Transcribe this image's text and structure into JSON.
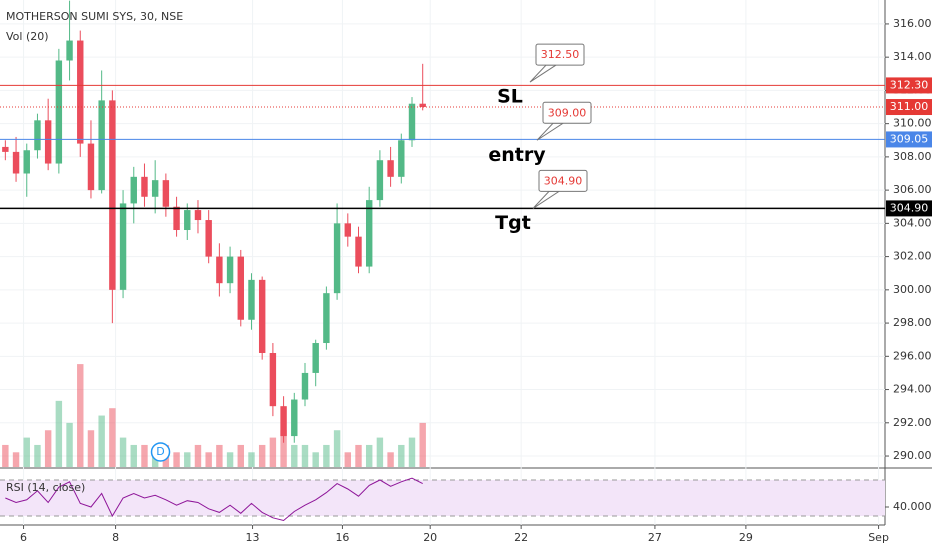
{
  "chart_data": {
    "type": "candlestick",
    "title": "MOTHERSON SUMI SYS, 30, NSE",
    "volume_label": "Vol (20)",
    "rsi_label": "RSI (14, close)",
    "event_marker": {
      "label": "D",
      "x": 14.5
    },
    "open": [
      308.6,
      308.3,
      307.0,
      308.4,
      310.2,
      307.6,
      313.8,
      315.0,
      308.8,
      306.0,
      311.4,
      300.0,
      305.2,
      306.8,
      305.6,
      306.6,
      305.0,
      303.6,
      304.8,
      304.2,
      302.0,
      300.4,
      302.0,
      298.2,
      300.6,
      296.2,
      293.0,
      291.2,
      293.4,
      295.0,
      296.8,
      299.8,
      304.0,
      303.2,
      301.4,
      305.4,
      307.8,
      306.8,
      309.0,
      311.2
    ],
    "high": [
      309.0,
      309.2,
      308.8,
      310.6,
      311.5,
      314.5,
      317.4,
      315.6,
      310.2,
      313.2,
      312.0,
      306.0,
      307.4,
      307.6,
      307.8,
      307.0,
      305.6,
      305.2,
      305.4,
      304.8,
      302.8,
      302.6,
      302.4,
      301.0,
      300.8,
      296.8,
      293.6,
      293.8,
      295.6,
      297.0,
      300.2,
      305.2,
      304.6,
      303.8,
      306.2,
      308.4,
      308.6,
      309.4,
      311.6,
      313.6
    ],
    "low": [
      307.8,
      306.5,
      305.6,
      307.9,
      307.2,
      307.0,
      312.6,
      308.0,
      305.5,
      305.8,
      298.0,
      299.5,
      304.0,
      305.0,
      304.6,
      304.4,
      303.2,
      303.0,
      303.4,
      301.6,
      299.6,
      299.8,
      297.8,
      297.6,
      295.8,
      292.4,
      290.8,
      290.8,
      293.0,
      294.2,
      296.4,
      299.4,
      302.6,
      301.0,
      301.0,
      305.0,
      306.2,
      306.4,
      308.6,
      310.8
    ],
    "close": [
      308.3,
      307.0,
      308.4,
      310.2,
      307.6,
      313.8,
      315.0,
      308.8,
      306.0,
      311.4,
      300.0,
      305.2,
      306.8,
      305.6,
      306.6,
      305.0,
      303.6,
      304.8,
      304.2,
      302.0,
      300.4,
      302.0,
      298.2,
      300.6,
      296.2,
      293.0,
      291.2,
      293.4,
      295.0,
      296.8,
      299.8,
      304.0,
      303.2,
      301.4,
      305.4,
      307.8,
      306.8,
      309.0,
      311.2,
      311.0
    ],
    "volume": [
      3,
      2,
      4,
      3,
      5,
      9,
      6,
      14,
      5,
      7,
      8,
      4,
      3,
      3,
      2,
      3,
      2,
      2,
      3,
      2,
      3,
      2,
      3,
      2,
      3,
      4,
      5,
      3,
      3,
      2,
      3,
      5,
      2,
      3,
      3,
      4,
      2,
      3,
      4,
      6
    ],
    "rsi": [
      50,
      45,
      48,
      58,
      45,
      62,
      68,
      44,
      40,
      55,
      30,
      50,
      55,
      50,
      53,
      48,
      42,
      47,
      45,
      38,
      34,
      42,
      33,
      44,
      34,
      28,
      25,
      35,
      42,
      48,
      56,
      66,
      60,
      52,
      64,
      70,
      63,
      68,
      72,
      66
    ],
    "up_color": "#53b987",
    "down_color": "#eb4d5c",
    "rsi_color": "#8e1599",
    "xlim": [
      -0.5,
      82.2
    ],
    "xticks": [
      {
        "value": 1.7,
        "label": "6"
      },
      {
        "value": 10.3,
        "label": "8"
      },
      {
        "value": 23.1,
        "label": "13"
      },
      {
        "value": 31.5,
        "label": "16"
      },
      {
        "value": 39.7,
        "label": "20"
      },
      {
        "value": 48.2,
        "label": "22"
      },
      {
        "value": 60.7,
        "label": "27"
      },
      {
        "value": 69.2,
        "label": "29"
      },
      {
        "value": 81.6,
        "label": "Sep"
      }
    ],
    "ylim": [
      289.34,
      317.44
    ],
    "yticks": [
      {
        "value": 290,
        "label": "290.00"
      },
      {
        "value": 292,
        "label": "292.00"
      },
      {
        "value": 294,
        "label": "294.00"
      },
      {
        "value": 296,
        "label": "296.00"
      },
      {
        "value": 298,
        "label": "298.00"
      },
      {
        "value": 300,
        "label": "300.00"
      },
      {
        "value": 302,
        "label": "302.00"
      },
      {
        "value": 304,
        "label": "304.00"
      },
      {
        "value": 306,
        "label": "306.00"
      },
      {
        "value": 308,
        "label": "308.00"
      },
      {
        "value": 310,
        "label": "310.00"
      },
      {
        "value": 312,
        "label": "312.00"
      },
      {
        "value": 314,
        "label": "314.00"
      },
      {
        "value": 316,
        "label": "316.00"
      }
    ],
    "volume_ylim": [
      0,
      20
    ],
    "rsi_ylim": [
      20,
      81.1
    ],
    "rsi_bands": [
      30,
      70
    ],
    "rsi_yticks": [
      {
        "value": 40,
        "label": "40.0000"
      }
    ],
    "levels": [
      {
        "value": 312.3,
        "label": "312.30",
        "color": "#e53935",
        "style": "solid"
      },
      {
        "value": 311.0,
        "label": "311.00",
        "color": "#e53935",
        "style": "dotted"
      },
      {
        "value": 309.05,
        "label": "309.05",
        "color": "#4a86e8",
        "style": "solid"
      },
      {
        "value": 304.9,
        "label": "304.90",
        "color": "#000000",
        "style": "solid"
      }
    ],
    "annotations": [
      {
        "text": "SL",
        "value": 312.5,
        "label": "312.50"
      },
      {
        "text": "entry",
        "value": 309.0,
        "label": "309.00"
      },
      {
        "text": "Tgt",
        "value": 304.9,
        "label": "304.90"
      }
    ]
  }
}
